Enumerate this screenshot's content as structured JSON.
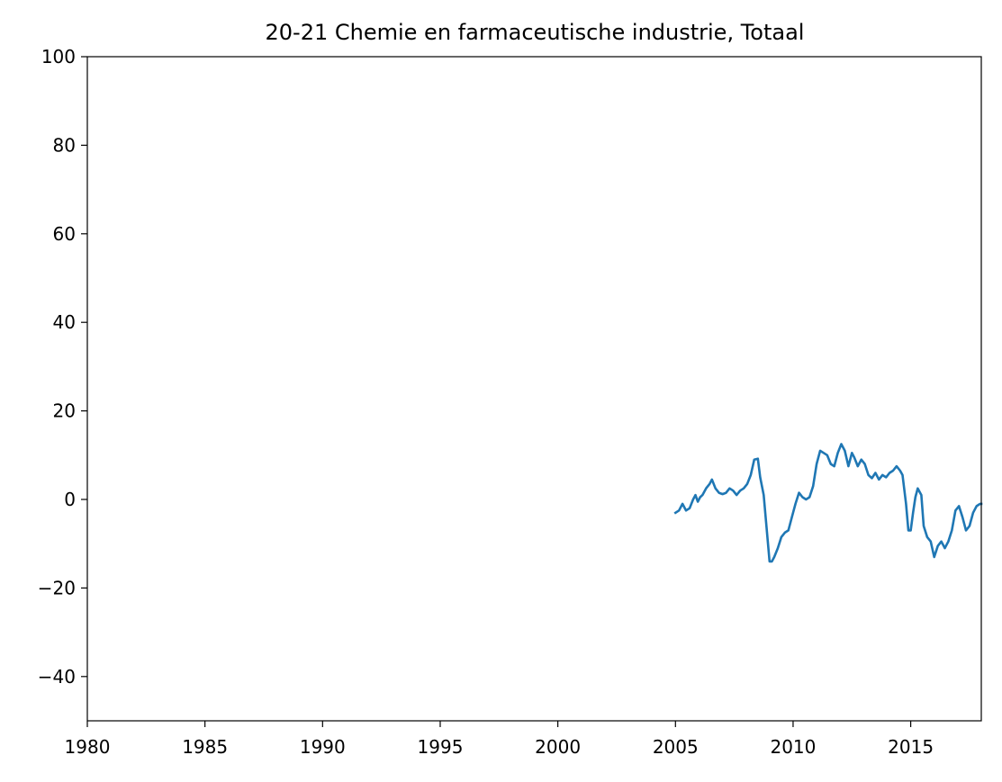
{
  "chart_data": {
    "type": "line",
    "title": "20-21 Chemie en farmaceutische industrie, Totaal",
    "xlabel": "",
    "ylabel": "",
    "xlim": [
      1980,
      2018
    ],
    "ylim": [
      -50,
      100
    ],
    "xticks": [
      1980,
      1985,
      1990,
      1995,
      2000,
      2005,
      2010,
      2015
    ],
    "yticks": [
      -40,
      -20,
      0,
      20,
      40,
      60,
      80,
      100
    ],
    "ytick_labels": [
      "−40",
      "−20",
      "0",
      "20",
      "40",
      "60",
      "80",
      "100"
    ],
    "grid": false,
    "legend": "none",
    "series": [
      {
        "color": "#1f77b4",
        "x": [
          2005.0,
          2005.15,
          2005.3,
          2005.45,
          2005.6,
          2005.75,
          2005.85,
          2005.95,
          2006.05,
          2006.15,
          2006.3,
          2006.45,
          2006.55,
          2006.7,
          2006.85,
          2007.0,
          2007.15,
          2007.3,
          2007.45,
          2007.6,
          2007.75,
          2007.9,
          2008.05,
          2008.2,
          2008.35,
          2008.5,
          2008.6,
          2008.75,
          2008.85,
          2009.0,
          2009.1,
          2009.2,
          2009.35,
          2009.5,
          2009.65,
          2009.8,
          2009.95,
          2010.1,
          2010.25,
          2010.4,
          2010.55,
          2010.7,
          2010.85,
          2011.0,
          2011.15,
          2011.3,
          2011.45,
          2011.6,
          2011.75,
          2011.9,
          2012.05,
          2012.2,
          2012.35,
          2012.5,
          2012.6,
          2012.75,
          2012.9,
          2013.05,
          2013.2,
          2013.35,
          2013.5,
          2013.65,
          2013.8,
          2013.95,
          2014.1,
          2014.25,
          2014.4,
          2014.55,
          2014.65,
          2014.8,
          2014.9,
          2015.0,
          2015.1,
          2015.2,
          2015.3,
          2015.45,
          2015.55,
          2015.7,
          2015.85,
          2016.0,
          2016.15,
          2016.3,
          2016.45,
          2016.6,
          2016.75,
          2016.9,
          2017.05,
          2017.2,
          2017.35,
          2017.5,
          2017.65,
          2017.8,
          2017.95,
          2018.0
        ],
        "y": [
          -3.0,
          -2.5,
          -1.0,
          -2.5,
          -2.0,
          0.0,
          1.0,
          -0.5,
          0.5,
          1.0,
          2.5,
          3.5,
          4.5,
          2.5,
          1.5,
          1.2,
          1.5,
          2.5,
          2.0,
          1.0,
          2.0,
          2.5,
          3.5,
          5.5,
          9.0,
          9.2,
          5.0,
          1.0,
          -5.0,
          -14.0,
          -14.0,
          -13.0,
          -11.0,
          -8.5,
          -7.5,
          -7.0,
          -4.0,
          -1.0,
          1.5,
          0.5,
          0.0,
          0.5,
          3.0,
          8.0,
          11.0,
          10.5,
          10.0,
          8.0,
          7.5,
          10.5,
          12.5,
          11.0,
          7.5,
          10.5,
          9.5,
          7.5,
          9.0,
          8.0,
          5.5,
          4.8,
          6.0,
          4.5,
          5.5,
          5.0,
          6.0,
          6.5,
          7.5,
          6.5,
          5.5,
          -1.0,
          -7.0,
          -7.0,
          -3.0,
          0.5,
          2.5,
          1.0,
          -6.0,
          -8.5,
          -9.5,
          -13.0,
          -10.5,
          -9.5,
          -11.0,
          -9.5,
          -7.0,
          -2.5,
          -1.5,
          -4.0,
          -7.0,
          -6.0,
          -3.0,
          -1.5,
          -1.0,
          -1.0
        ]
      }
    ]
  }
}
